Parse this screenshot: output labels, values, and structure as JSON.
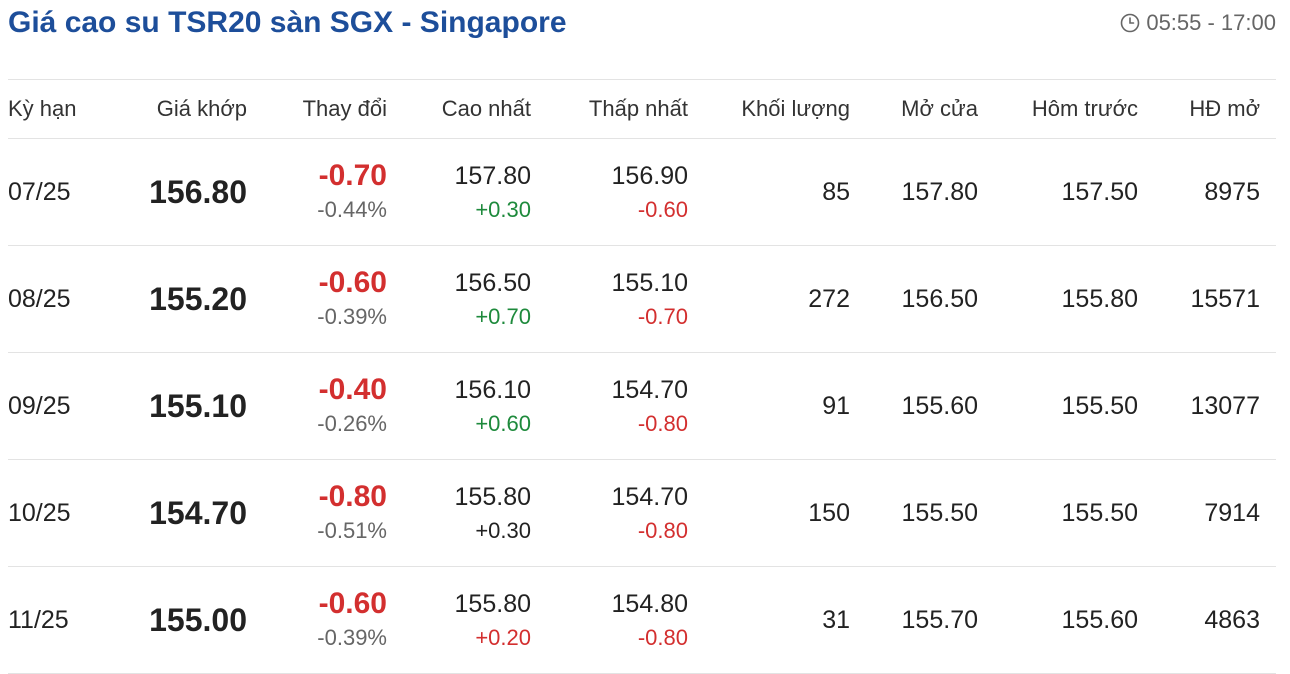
{
  "header": {
    "title": "Giá cao su TSR20 sàn SGX - Singapore",
    "session_time": "05:55 - 17:00",
    "clock_icon": "clock-icon"
  },
  "table": {
    "columns": [
      "Kỳ hạn",
      "Giá khớp",
      "Thay đổi",
      "Cao nhất",
      "Thấp nhất",
      "Khối lượng",
      "Mở cửa",
      "Hôm trước",
      "HĐ mở"
    ],
    "rows": [
      {
        "term": "07/25",
        "price": "156.80",
        "change": "-0.70",
        "change_pct": "-0.44%",
        "high": "157.80",
        "high_diff": "+0.30",
        "high_dir": "pos",
        "low": "156.90",
        "low_diff": "-0.60",
        "low_dir": "neg",
        "volume": "85",
        "open": "157.80",
        "prev": "157.50",
        "open_interest": "8975"
      },
      {
        "term": "08/25",
        "price": "155.20",
        "change": "-0.60",
        "change_pct": "-0.39%",
        "high": "156.50",
        "high_diff": "+0.70",
        "high_dir": "pos",
        "low": "155.10",
        "low_diff": "-0.70",
        "low_dir": "neg",
        "volume": "272",
        "open": "156.50",
        "prev": "155.80",
        "open_interest": "15571"
      },
      {
        "term": "09/25",
        "price": "155.10",
        "change": "-0.40",
        "change_pct": "-0.26%",
        "high": "156.10",
        "high_diff": "+0.60",
        "high_dir": "pos",
        "low": "154.70",
        "low_diff": "-0.80",
        "low_dir": "neg",
        "volume": "91",
        "open": "155.60",
        "prev": "155.50",
        "open_interest": "13077"
      },
      {
        "term": "10/25",
        "price": "154.70",
        "change": "-0.80",
        "change_pct": "-0.51%",
        "high": "155.80",
        "high_diff": "+0.30",
        "high_dir": "neutral",
        "low": "154.70",
        "low_diff": "-0.80",
        "low_dir": "neg",
        "volume": "150",
        "open": "155.50",
        "prev": "155.50",
        "open_interest": "7914"
      },
      {
        "term": "11/25",
        "price": "155.00",
        "change": "-0.60",
        "change_pct": "-0.39%",
        "high": "155.80",
        "high_diff": "+0.20",
        "high_dir": "neg",
        "low": "154.80",
        "low_diff": "-0.80",
        "low_dir": "neg",
        "volume": "31",
        "open": "155.70",
        "prev": "155.60",
        "open_interest": "4863"
      }
    ]
  },
  "colors": {
    "title": "#1d4e9a",
    "negative": "#d32f2f",
    "positive": "#1e8a3c",
    "muted": "#666666"
  }
}
